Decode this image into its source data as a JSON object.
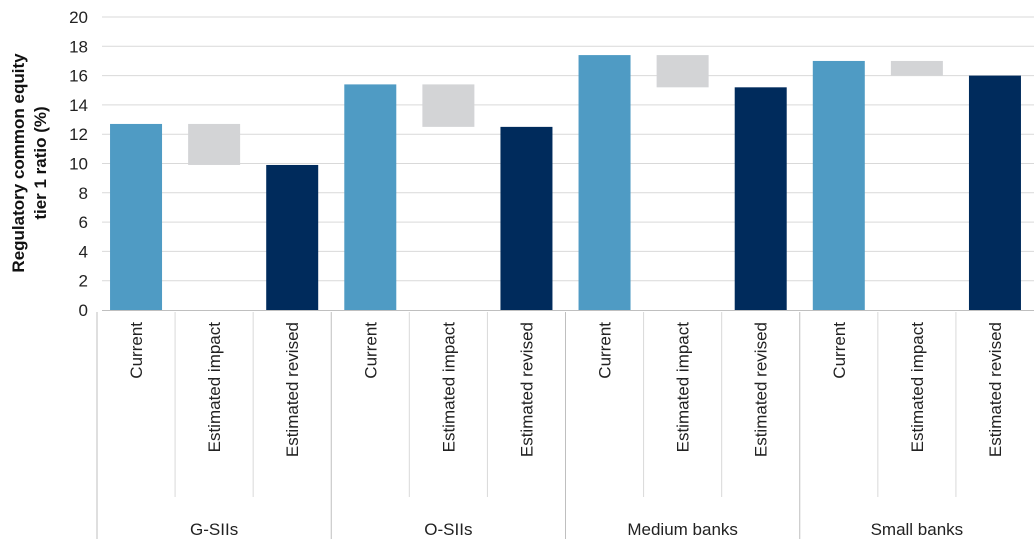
{
  "chart_data": {
    "type": "bar",
    "title": "",
    "ylabel": [
      "Regulatory common equity",
      "tier 1 ratio (%)"
    ],
    "ylim": [
      0,
      20
    ],
    "yticks": [
      0,
      2,
      4,
      6,
      8,
      10,
      12,
      14,
      16,
      18,
      20
    ],
    "grid": true,
    "category_labels": [
      "Current",
      "Estimated impact",
      "Estimated revised"
    ],
    "groups": [
      {
        "name": "G-SIIs",
        "bars": [
          {
            "label": "Current",
            "kind": "current",
            "value": 12.7
          },
          {
            "label": "Estimated impact",
            "kind": "impact",
            "from": 9.9,
            "to": 12.7
          },
          {
            "label": "Estimated revised",
            "kind": "revised",
            "value": 9.9
          }
        ]
      },
      {
        "name": "O-SIIs",
        "bars": [
          {
            "label": "Current",
            "kind": "current",
            "value": 15.4
          },
          {
            "label": "Estimated impact",
            "kind": "impact",
            "from": 12.5,
            "to": 15.4
          },
          {
            "label": "Estimated revised",
            "kind": "revised",
            "value": 12.5
          }
        ]
      },
      {
        "name": "Medium banks",
        "bars": [
          {
            "label": "Current",
            "kind": "current",
            "value": 17.4
          },
          {
            "label": "Estimated impact",
            "kind": "impact",
            "from": 15.2,
            "to": 17.4
          },
          {
            "label": "Estimated revised",
            "kind": "revised",
            "value": 15.2
          }
        ]
      },
      {
        "name": "Small banks",
        "bars": [
          {
            "label": "Current",
            "kind": "current",
            "value": 17.0
          },
          {
            "label": "Estimated impact",
            "kind": "impact",
            "from": 16.0,
            "to": 17.0
          },
          {
            "label": "Estimated revised",
            "kind": "revised",
            "value": 16.0
          }
        ]
      }
    ],
    "colors": {
      "current": "#4f9bc4",
      "impact": "#d3d4d6",
      "revised": "#002b5c",
      "grid": "#d9d9d9",
      "axis": "#bfbfbf"
    }
  }
}
